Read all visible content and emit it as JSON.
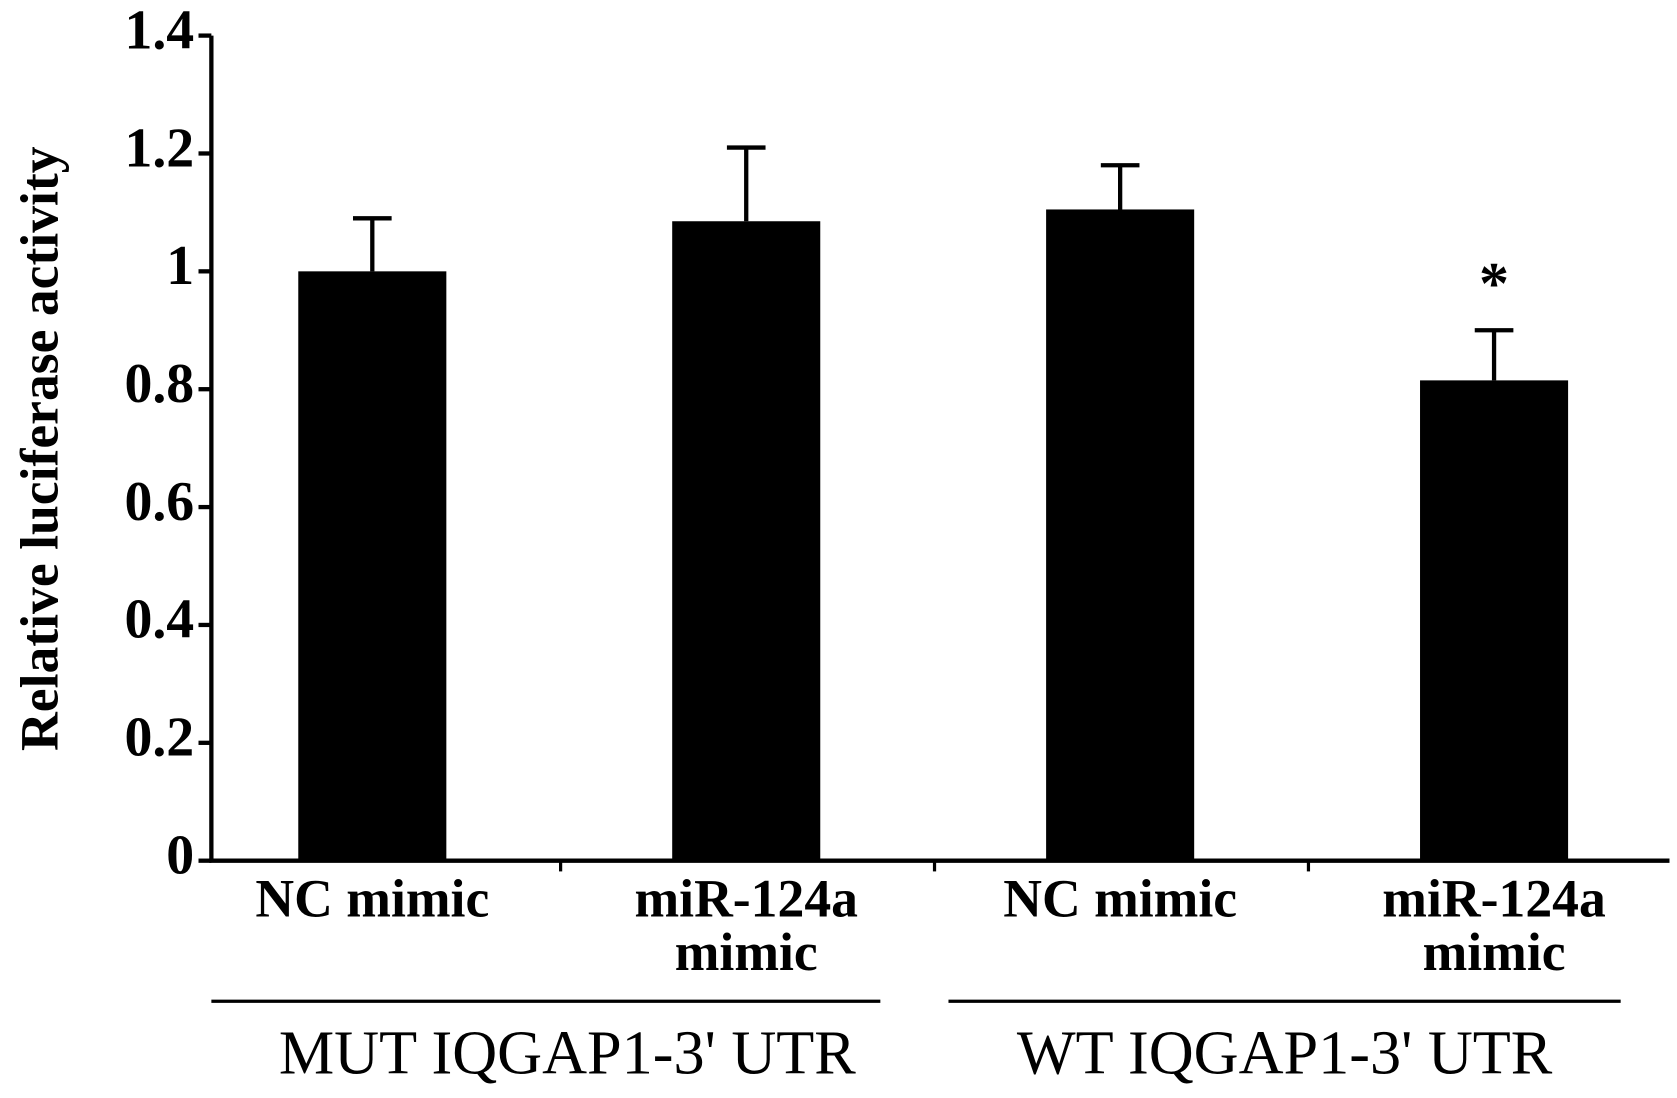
{
  "chart_data": {
    "type": "bar",
    "y_label": "Relative luciferase activity",
    "categories": [
      "NC mimic",
      "miR-124a mimic",
      "NC mimic",
      "miR-124a mimic"
    ],
    "values": [
      1.0,
      1.085,
      1.105,
      0.815
    ],
    "errors": [
      0.09,
      0.125,
      0.075,
      0.085
    ],
    "color": "#000000",
    "groups": [
      "MUT IQGAP1-3' UTR",
      "WT IQGAP1-3' UTR"
    ],
    "annotations": [
      {
        "text": "*",
        "category": 3
      }
    ],
    "ylim": [
      0,
      1.4
    ],
    "yticks": [
      0,
      0.2,
      0.4,
      0.6,
      0.8,
      1,
      1.2,
      1.4
    ],
    "grid": false
  }
}
